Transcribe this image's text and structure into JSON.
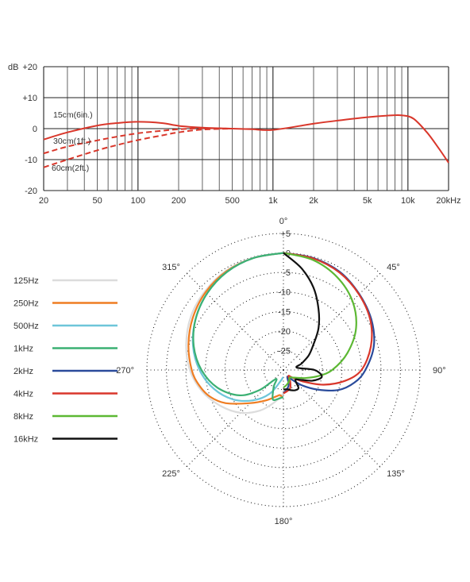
{
  "chart_data": [
    {
      "type": "line",
      "title": "",
      "xlabel": "",
      "ylabel": "dB",
      "x_scale": "log",
      "xlim": [
        20,
        20000
      ],
      "ylim": [
        -20,
        20
      ],
      "x_tick_labels": [
        {
          "value": 20,
          "label": "20"
        },
        {
          "value": 50,
          "label": "50"
        },
        {
          "value": 100,
          "label": "100"
        },
        {
          "value": 200,
          "label": "200"
        },
        {
          "value": 500,
          "label": "500"
        },
        {
          "value": 1000,
          "label": "1k"
        },
        {
          "value": 2000,
          "label": "2k"
        },
        {
          "value": 5000,
          "label": "5k"
        },
        {
          "value": 10000,
          "label": "10k"
        },
        {
          "value": 20000,
          "label": "20kHz"
        }
      ],
      "y_tick_labels": [
        {
          "value": 20,
          "label": "+20"
        },
        {
          "value": 10,
          "label": "+10"
        },
        {
          "value": 0,
          "label": "0"
        },
        {
          "value": -10,
          "label": "-10"
        },
        {
          "value": -20,
          "label": "-20"
        }
      ],
      "grid": true,
      "main_series": {
        "color": "#d9372b",
        "x": [
          20,
          30,
          50,
          70,
          100,
          150,
          200,
          300,
          500,
          700,
          1000,
          2000,
          3000,
          5000,
          7000,
          9000,
          11000,
          14000,
          17000,
          20000
        ],
        "y": [
          -3.5,
          -1.2,
          1.0,
          1.8,
          2.2,
          1.8,
          0.9,
          0.3,
          0.0,
          -0.2,
          -0.4,
          1.6,
          2.6,
          3.7,
          4.2,
          4.3,
          3.2,
          -1.5,
          -6.5,
          -11
        ]
      },
      "proximity_series": [
        {
          "name": "15cm(6in.)",
          "color": "#d9372b",
          "x": [
            20,
            30,
            50,
            70,
            100,
            150,
            200,
            300,
            500
          ],
          "y": [
            -3.5,
            -1.2,
            1.0,
            1.8,
            2.2,
            1.8,
            0.9,
            0.3,
            0.0
          ]
        },
        {
          "name": "30cm(1ft.)",
          "color": "#d9372b",
          "x": [
            20,
            30,
            50,
            70,
            100,
            150,
            200,
            300,
            500
          ],
          "y": [
            -8,
            -5.8,
            -3.8,
            -2.6,
            -1.5,
            -0.7,
            -0.2,
            0.1,
            0.0
          ]
        },
        {
          "name": "60cm(2ft.)",
          "color": "#d9372b",
          "x": [
            20,
            30,
            50,
            70,
            100,
            150,
            200,
            300,
            500
          ],
          "y": [
            -12.5,
            -10,
            -7,
            -5.3,
            -3.7,
            -2.2,
            -1.2,
            -0.3,
            0.0
          ]
        }
      ]
    },
    {
      "type": "polar",
      "title": "",
      "r_range": [
        -30,
        5
      ],
      "r_ticks": [
        "+5",
        "0",
        "-5",
        "-10",
        "-15",
        "-20",
        "-25"
      ],
      "angle_labels": [
        {
          "angle": 0,
          "label": "0°"
        },
        {
          "angle": 45,
          "label": "45°"
        },
        {
          "angle": 90,
          "label": "90°"
        },
        {
          "angle": 135,
          "label": "135°"
        },
        {
          "angle": 180,
          "label": "180°"
        },
        {
          "angle": 225,
          "label": "225°"
        },
        {
          "angle": 270,
          "label": "270°"
        },
        {
          "angle": 315,
          "label": "315°"
        }
      ],
      "legend_placement": "left",
      "series": [
        {
          "name": "125Hz",
          "color": "#dcdcdc",
          "side": "left",
          "angles": [
            0,
            15,
            30,
            45,
            60,
            75,
            90,
            105,
            120,
            135,
            150,
            165,
            180
          ],
          "values": [
            0,
            -0.2,
            -0.6,
            -1.5,
            -2.6,
            -4.2,
            -6,
            -8.5,
            -11.5,
            -14.5,
            -18,
            -21.5,
            -24
          ]
        },
        {
          "name": "250Hz",
          "color": "#ef7d22",
          "side": "left",
          "angles": [
            0,
            15,
            30,
            45,
            60,
            75,
            90,
            100,
            110,
            120,
            135,
            150,
            165,
            172,
            178,
            180
          ],
          "values": [
            0,
            -0.3,
            -0.8,
            -1.8,
            -3.2,
            -4.8,
            -6.5,
            -8,
            -10,
            -13,
            -18,
            -21,
            -23,
            -23.5,
            -23,
            -23
          ]
        },
        {
          "name": "500Hz",
          "color": "#6ec6d9",
          "side": "left",
          "angles": [
            0,
            15,
            30,
            45,
            60,
            75,
            90,
            105,
            120,
            135,
            150,
            165,
            175,
            180
          ],
          "values": [
            0,
            -0.3,
            -1,
            -2.3,
            -4,
            -6,
            -8.5,
            -11.5,
            -15,
            -19,
            -23,
            -27,
            -28,
            -28
          ]
        },
        {
          "name": "1kHz",
          "color": "#3bb073",
          "side": "left",
          "angles": [
            0,
            15,
            30,
            45,
            60,
            75,
            90,
            105,
            120,
            130,
            140,
            150,
            160,
            170,
            178,
            180
          ],
          "values": [
            0,
            -0.3,
            -1,
            -2.3,
            -4,
            -6.2,
            -9,
            -12.5,
            -17,
            -22,
            -27,
            -25,
            -22,
            -22.5,
            -23,
            -23
          ]
        },
        {
          "name": "2kHz",
          "color": "#2a4b9b",
          "side": "right",
          "angles": [
            0,
            15,
            30,
            45,
            60,
            75,
            90,
            100,
            110,
            120,
            130,
            140,
            150,
            160,
            170,
            180
          ],
          "values": [
            0,
            -0.3,
            -1,
            -2.5,
            -4,
            -6,
            -9,
            -11.5,
            -15,
            -20,
            -24,
            -27,
            -28,
            -26,
            -25,
            -24
          ]
        },
        {
          "name": "4kHz",
          "color": "#d9372b",
          "side": "right",
          "angles": [
            0,
            15,
            30,
            45,
            60,
            75,
            90,
            100,
            110,
            120,
            130,
            140,
            150,
            160,
            170,
            180
          ],
          "values": [
            0,
            -0.4,
            -1.2,
            -2.6,
            -4.3,
            -6.8,
            -10,
            -14,
            -19,
            -24,
            -27,
            -28,
            -26.5,
            -25,
            -24.5,
            -24
          ]
        },
        {
          "name": "8kHz",
          "color": "#5cb833",
          "side": "right",
          "angles": [
            0,
            15,
            30,
            45,
            60,
            75,
            90,
            100,
            110,
            120,
            130,
            140,
            150,
            160,
            170,
            180
          ],
          "values": [
            0,
            -0.8,
            -2.5,
            -5,
            -8.5,
            -13,
            -17.5,
            -21,
            -24,
            -26,
            -27,
            -27.5,
            -27,
            -26.5,
            -26,
            -25.5
          ]
        },
        {
          "name": "16kHz",
          "color": "#111111",
          "side": "right",
          "angles": [
            0,
            10,
            20,
            30,
            40,
            50,
            60,
            70,
            80,
            90,
            100,
            110,
            120,
            130,
            140,
            150,
            160,
            170,
            180
          ],
          "values": [
            0,
            -3.5,
            -7.5,
            -12,
            -16,
            -20,
            -22.5,
            -25,
            -26.5,
            -22,
            -20,
            -22,
            -25,
            -26,
            -24,
            -24,
            -24.5,
            -25,
            -25
          ]
        }
      ]
    }
  ]
}
